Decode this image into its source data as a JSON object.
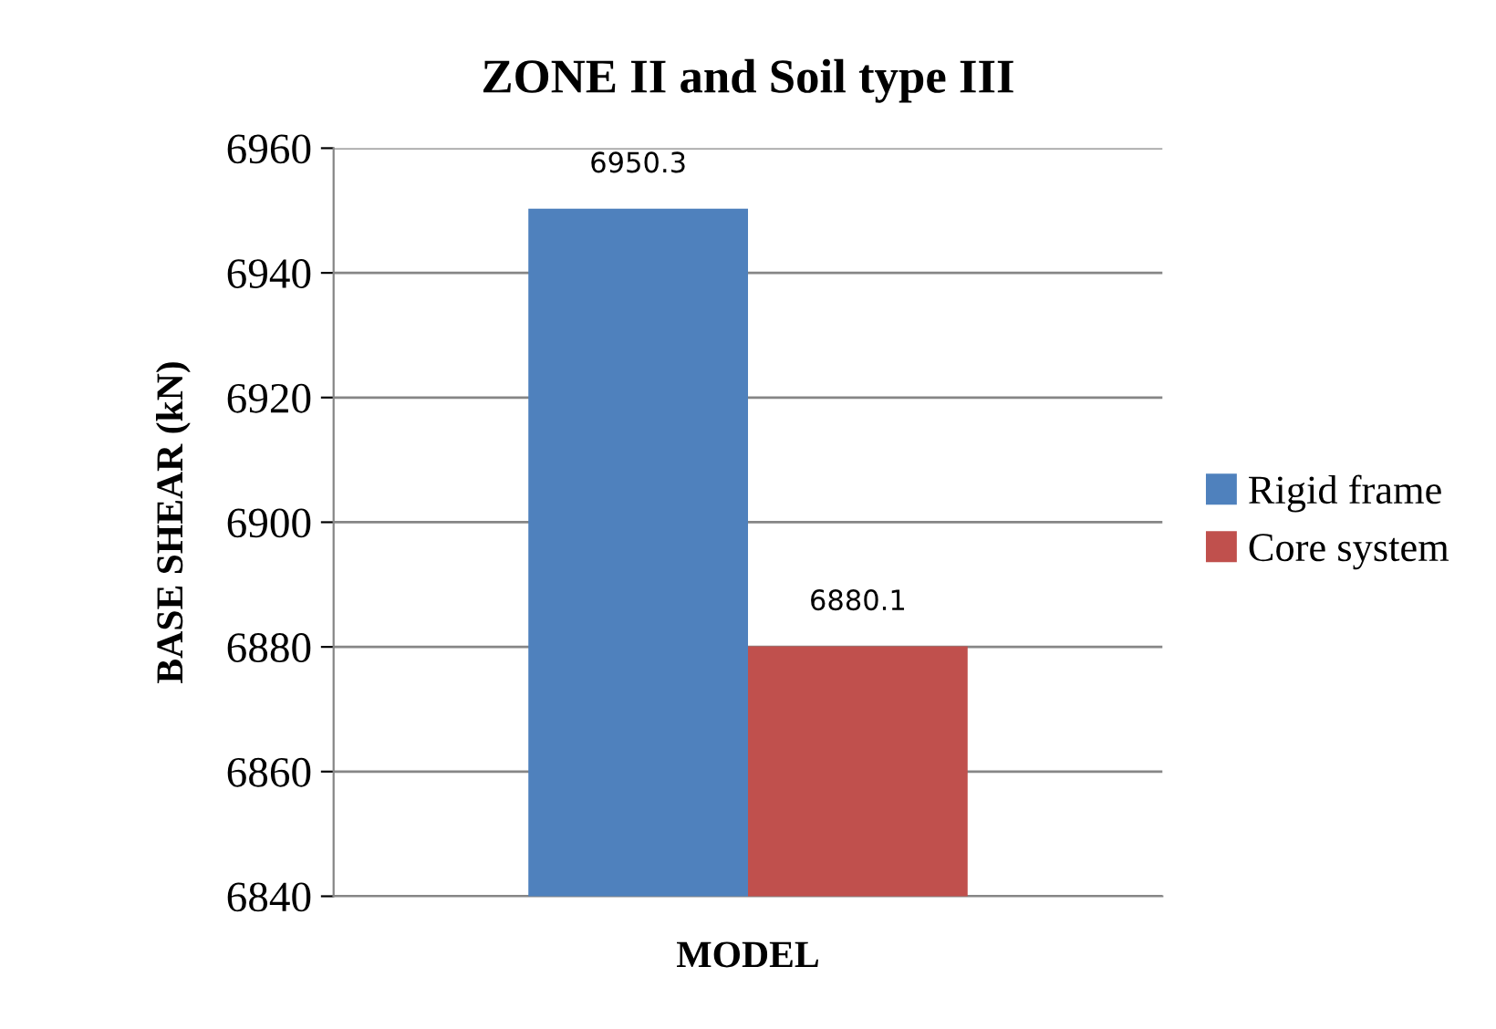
{
  "chart_data": {
    "type": "bar",
    "title": "ZONE II and Soil type III",
    "xlabel": "MODEL",
    "ylabel": "BASE SHEAR (kN)",
    "categories": [
      null
    ],
    "series": [
      {
        "name": "Rigid frame",
        "color": "#4f81bd",
        "values": [
          6950.3
        ]
      },
      {
        "name": "Core system",
        "color": "#c0504d",
        "values": [
          6880.1
        ]
      }
    ],
    "ylim": [
      6840,
      6960
    ],
    "yticks": [
      6840,
      6860,
      6880,
      6900,
      6920,
      6940,
      6960
    ],
    "grid": "y",
    "legend": "right",
    "data_labels": true
  }
}
